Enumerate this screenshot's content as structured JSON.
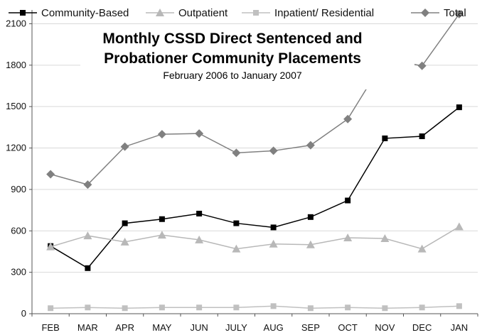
{
  "chart_data": {
    "type": "line",
    "title_line1": "Monthly CSSD Direct Sentenced and",
    "title_line2": "Probationer Community Placements",
    "subtitle": "February 2006 to January 2007",
    "categories": [
      "FEB",
      "MAR",
      "APR",
      "MAY",
      "JUN",
      "JULY",
      "AUG",
      "SEP",
      "OCT",
      "NOV",
      "DEC",
      "JAN"
    ],
    "ylim": [
      0,
      2200
    ],
    "yticks": [
      0,
      300,
      600,
      900,
      1200,
      1500,
      1800,
      2100
    ],
    "yticks_labels": [
      "0",
      "300",
      "600",
      "900",
      "1200",
      "1500",
      "1800",
      "2100"
    ],
    "grid": "horizontal",
    "legend_position": "top",
    "series": [
      {
        "name": "Community-Based",
        "color": "#000000",
        "marker": "square",
        "values": [
          490,
          330,
          655,
          685,
          725,
          655,
          625,
          700,
          820,
          1270,
          1285,
          1495
        ]
      },
      {
        "name": "Outpatient",
        "color": "#b8b8b8",
        "marker": "triangle",
        "values": [
          485,
          565,
          520,
          570,
          535,
          470,
          505,
          500,
          550,
          545,
          470,
          630
        ]
      },
      {
        "name": "Inpatient/ Residential",
        "color": "#c0c0c0",
        "marker": "square",
        "values": [
          40,
          45,
          40,
          45,
          45,
          45,
          55,
          40,
          45,
          40,
          45,
          55
        ]
      },
      {
        "name": "Total",
        "color": "#808080",
        "marker": "diamond",
        "values": [
          1010,
          935,
          1210,
          1300,
          1305,
          1165,
          1180,
          1220,
          1410,
          1845,
          1795,
          2170
        ]
      }
    ]
  }
}
